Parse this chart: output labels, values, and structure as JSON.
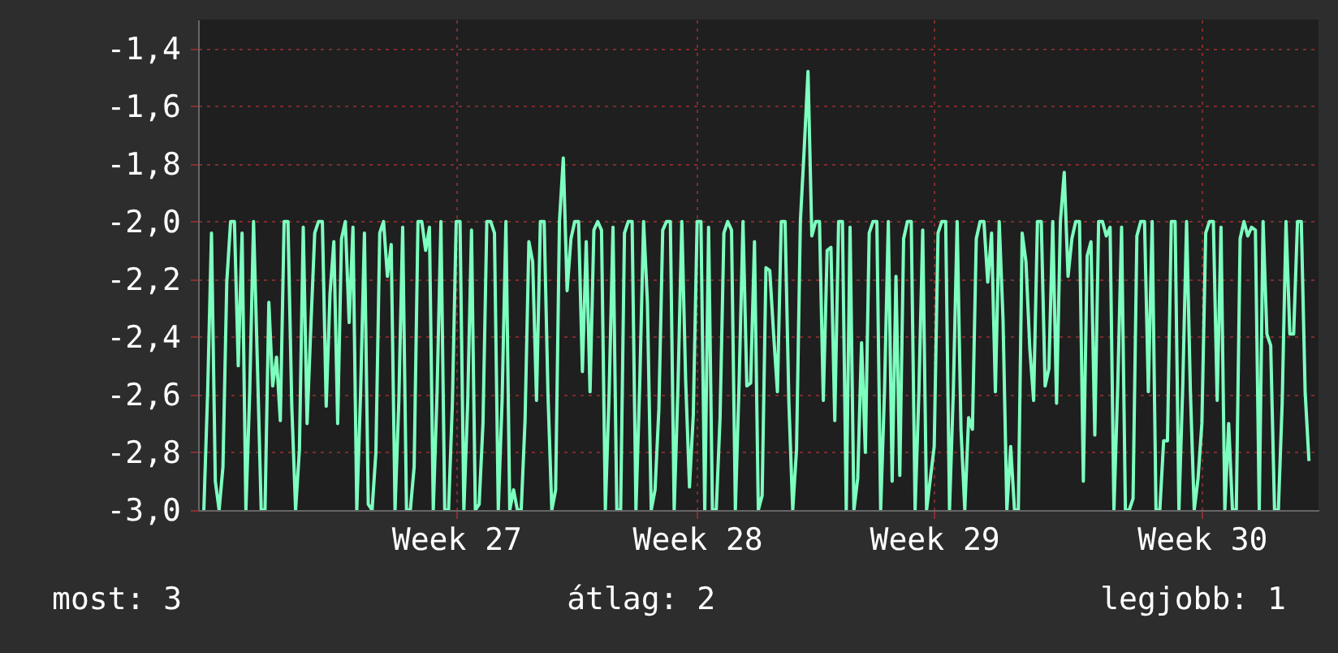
{
  "chart_data": {
    "type": "line",
    "grid": true,
    "categories": [
      null,
      null,
      null,
      null,
      null,
      null,
      null,
      null,
      null,
      null,
      null,
      null,
      null,
      null,
      null,
      null,
      null,
      null,
      null,
      null,
      null,
      null,
      null,
      null,
      null,
      null,
      null,
      null,
      null,
      null,
      null,
      null,
      null,
      null,
      null,
      null,
      null,
      null,
      null,
      null,
      null,
      null,
      null,
      null,
      null,
      null,
      null,
      null,
      null,
      null,
      null,
      null,
      null,
      null,
      null,
      null,
      null,
      null,
      null,
      null,
      null,
      null,
      null,
      null,
      null,
      null,
      "Week 27",
      null,
      null,
      null,
      null,
      null,
      null,
      null,
      null,
      null,
      null,
      null,
      null,
      null,
      null,
      null,
      null,
      null,
      null,
      null,
      null,
      null,
      null,
      null,
      null,
      null,
      null,
      null,
      null,
      null,
      null,
      null,
      null,
      null,
      null,
      null,
      null,
      null,
      null,
      null,
      null,
      null,
      null,
      null,
      null,
      null,
      null,
      null,
      null,
      null,
      null,
      null,
      null,
      null,
      null,
      null,
      null,
      null,
      null,
      null,
      null,
      null,
      null,
      "Week 28",
      null,
      null,
      null,
      null,
      null,
      null,
      null,
      null,
      null,
      null,
      null,
      null,
      null,
      null,
      null,
      null,
      null,
      null,
      null,
      null,
      null,
      null,
      null,
      null,
      null,
      null,
      null,
      null,
      null,
      null,
      null,
      null,
      null,
      null,
      null,
      null,
      null,
      null,
      null,
      null,
      null,
      null,
      null,
      null,
      null,
      null,
      null,
      null,
      null,
      null,
      null,
      null,
      null,
      null,
      null,
      null,
      null,
      null,
      null,
      null,
      null,
      "Week 29",
      null,
      null,
      null,
      null,
      null,
      null,
      null,
      null,
      null,
      null,
      null,
      null,
      null,
      null,
      null,
      null,
      null,
      null,
      null,
      null,
      null,
      null,
      null,
      null,
      null,
      null,
      null,
      null,
      null,
      null,
      null,
      null,
      null,
      null,
      null,
      null,
      null,
      null,
      null,
      null,
      null,
      null,
      null,
      null,
      null,
      null,
      null,
      null,
      null,
      null,
      null,
      null,
      null,
      null,
      null,
      null,
      null,
      null,
      null,
      null,
      null,
      null,
      null,
      null,
      null,
      null,
      null,
      null,
      null,
      "Week 30",
      null,
      null,
      null,
      null,
      null,
      null,
      null,
      null,
      null,
      null,
      null,
      null,
      null,
      null,
      null,
      null,
      null,
      null,
      null,
      null,
      null,
      null,
      null,
      null,
      null,
      null,
      null,
      null
    ],
    "ylim": [
      -3.0,
      -1.3
    ],
    "yticks": [
      {
        "value": -3.0,
        "label": "-3,0"
      },
      {
        "value": -2.8,
        "label": "-2,8"
      },
      {
        "value": -2.6,
        "label": "-2,6"
      },
      {
        "value": -2.4,
        "label": "-2,4"
      },
      {
        "value": -2.2,
        "label": "-2,2"
      },
      {
        "value": -2.0,
        "label": "-2,0"
      },
      {
        "value": -1.8,
        "label": "-1,8"
      },
      {
        "value": -1.6,
        "label": "-1,6"
      },
      {
        "value": -1.4,
        "label": "-1,4"
      }
    ],
    "annotations": [
      "most: 3",
      "átlag: 2",
      "legjobb: 1"
    ],
    "series": [
      {
        "color": "#7dffbf",
        "values": [
          -3.0,
          -2.59,
          -2.04,
          -2.9,
          -3.0,
          -2.85,
          -2.21,
          -2.0,
          -2.0,
          -2.5,
          -2.04,
          -3.0,
          -2.59,
          -2.0,
          -2.49,
          -3.0,
          -3.0,
          -2.28,
          -2.57,
          -2.47,
          -2.69,
          -2.0,
          -2.0,
          -2.64,
          -3.0,
          -2.79,
          -2.02,
          -2.7,
          -2.36,
          -2.04,
          -2.0,
          -2.0,
          -2.64,
          -2.25,
          -2.07,
          -2.7,
          -2.06,
          -2.0,
          -2.35,
          -2.02,
          -3.0,
          -2.59,
          -2.04,
          -2.98,
          -3.0,
          -2.8,
          -2.04,
          -2.0,
          -2.19,
          -2.08,
          -3.0,
          -2.62,
          -2.02,
          -3.0,
          -3.0,
          -2.85,
          -2.0,
          -2.0,
          -2.1,
          -2.02,
          -3.0,
          -2.59,
          -2.0,
          -3.0,
          -3.0,
          -2.63,
          -2.0,
          -2.0,
          -3.0,
          -2.63,
          -2.03,
          -3.0,
          -2.98,
          -2.7,
          -2.0,
          -2.0,
          -2.04,
          -3.0,
          -2.62,
          -2.0,
          -3.0,
          -2.93,
          -3.0,
          -3.0,
          -2.69,
          -2.07,
          -2.14,
          -2.62,
          -2.0,
          -2.0,
          -2.6,
          -3.0,
          -2.93,
          -2.0,
          -1.78,
          -2.24,
          -2.06,
          -2.0,
          -2.0,
          -2.52,
          -2.07,
          -2.59,
          -2.03,
          -2.0,
          -2.03,
          -3.0,
          -2.59,
          -2.02,
          -3.0,
          -3.0,
          -2.04,
          -2.0,
          -2.0,
          -3.0,
          -2.56,
          -2.0,
          -2.28,
          -3.0,
          -2.93,
          -2.65,
          -2.03,
          -2.0,
          -2.0,
          -3.0,
          -2.57,
          -2.0,
          -2.55,
          -2.92,
          -2.67,
          -2.0,
          -2.0,
          -3.0,
          -2.02,
          -3.0,
          -3.0,
          -2.68,
          -2.04,
          -2.0,
          -2.03,
          -3.0,
          -2.55,
          -2.0,
          -2.57,
          -2.56,
          -2.07,
          -3.0,
          -2.95,
          -2.16,
          -2.17,
          -2.39,
          -2.59,
          -2.0,
          -2.0,
          -2.63,
          -3.0,
          -2.79,
          -2.0,
          -1.75,
          -1.48,
          -2.05,
          -2.0,
          -2.0,
          -2.62,
          -2.1,
          -2.09,
          -2.69,
          -2.0,
          -2.0,
          -3.0,
          -2.02,
          -3.0,
          -2.89,
          -2.42,
          -2.8,
          -2.04,
          -2.0,
          -2.0,
          -3.0,
          -2.59,
          -2.0,
          -2.9,
          -2.19,
          -2.88,
          -2.06,
          -2.0,
          -2.0,
          -3.0,
          -2.59,
          -2.03,
          -3.0,
          -2.89,
          -2.78,
          -2.04,
          -2.0,
          -2.0,
          -3.0,
          -2.59,
          -2.0,
          -2.72,
          -3.0,
          -2.68,
          -2.72,
          -2.06,
          -2.0,
          -2.0,
          -2.21,
          -2.04,
          -2.59,
          -2.0,
          -2.34,
          -3.0,
          -2.78,
          -3.0,
          -3.0,
          -2.04,
          -2.14,
          -2.44,
          -2.62,
          -2.0,
          -2.0,
          -2.57,
          -2.51,
          -2.0,
          -2.63,
          -2.0,
          -1.83,
          -2.19,
          -2.06,
          -2.0,
          -2.0,
          -2.9,
          -2.12,
          -2.07,
          -2.74,
          -2.0,
          -2.0,
          -2.05,
          -2.02,
          -3.0,
          -2.57,
          -2.02,
          -3.0,
          -3.0,
          -2.96,
          -2.05,
          -2.0,
          -2.0,
          -2.59,
          -2.0,
          -3.0,
          -3.0,
          -2.76,
          -2.76,
          -2.0,
          -2.0,
          -3.0,
          -2.57,
          -2.0,
          -2.59,
          -3.0,
          -2.89,
          -2.7,
          -2.04,
          -2.0,
          -2.0,
          -2.62,
          -2.02,
          -3.0,
          -2.7,
          -3.0,
          -3.0,
          -2.06,
          -2.0,
          -2.05,
          -2.02,
          -2.03,
          -3.0,
          -2.0,
          -2.39,
          -2.43,
          -3.0,
          -3.0,
          -2.63,
          -2.0,
          -2.39,
          -2.39,
          -2.0,
          -2.0,
          -2.59,
          -2.83
        ]
      }
    ]
  }
}
